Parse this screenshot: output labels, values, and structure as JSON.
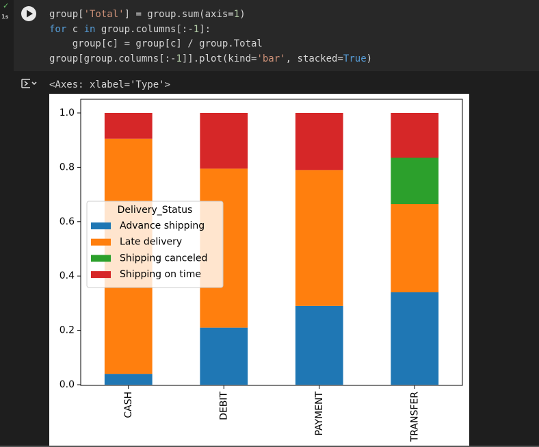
{
  "cell": {
    "status_icon": "check-icon",
    "exec_time": "1s",
    "run_icon": "play-icon",
    "code_lines": [
      "group['Total'] = group.sum(axis=1)",
      "for c in group.columns[:-1]:",
      "    group[c] = group[c] / group.Total",
      "group[group.columns[:-1]].plot(kind='bar', stacked=True)"
    ]
  },
  "output": {
    "toggle_icon": "output-toggle-icon",
    "repr": "<Axes: xlabel='Type'>"
  },
  "chart_data": {
    "type": "bar",
    "stacked": true,
    "categories": [
      "CASH",
      "DEBIT",
      "PAYMENT",
      "TRANSFER"
    ],
    "series": [
      {
        "name": "Advance shipping",
        "color": "#1f77b4",
        "values": [
          0.04,
          0.21,
          0.29,
          0.34
        ]
      },
      {
        "name": "Late delivery",
        "color": "#ff7f0e",
        "values": [
          0.865,
          0.585,
          0.5,
          0.325
        ]
      },
      {
        "name": "Shipping canceled",
        "color": "#2ca02c",
        "values": [
          0.0,
          0.0,
          0.0,
          0.17
        ]
      },
      {
        "name": "Shipping on time",
        "color": "#d62728",
        "values": [
          0.095,
          0.205,
          0.21,
          0.165
        ]
      }
    ],
    "legend_title": "Delivery_Status",
    "legend_position": "center-left",
    "ylim": [
      0,
      1.0
    ],
    "yticks": [
      "0.0",
      "0.2",
      "0.4",
      "0.6",
      "0.8",
      "1.0"
    ],
    "grid": false
  }
}
